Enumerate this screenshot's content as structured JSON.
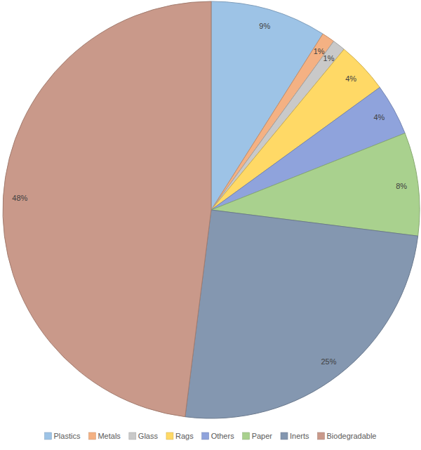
{
  "chart_data": {
    "type": "pie",
    "categories": [
      "Plastics",
      "Metals",
      "Glass",
      "Rags",
      "Others",
      "Paper",
      "Inerts",
      "Biodegradable"
    ],
    "values": [
      9,
      1,
      1,
      4,
      4,
      8,
      25,
      48
    ],
    "value_labels": [
      "9%",
      "1%",
      "1%",
      "4%",
      "4%",
      "8%",
      "25%",
      "48%"
    ],
    "colors": [
      "#9dc3e6",
      "#f4b183",
      "#c9c9c9",
      "#ffd966",
      "#8fa3dc",
      "#a9d18e",
      "#8497b0",
      "#c9998a"
    ],
    "data_labels": true,
    "legend": "bottom"
  }
}
